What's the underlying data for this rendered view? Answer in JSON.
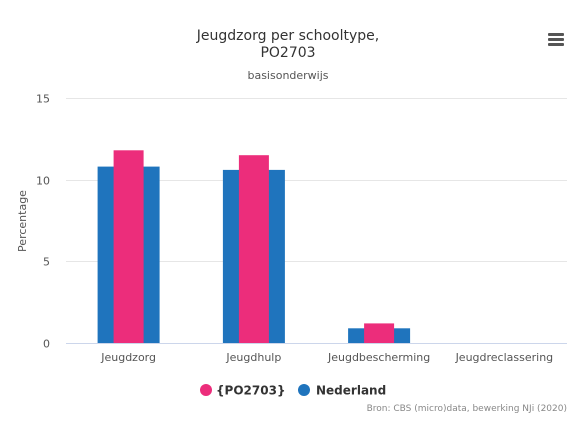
{
  "chart_data": {
    "type": "bar",
    "title_line1": "Jeugdzorg per schooltype,",
    "title_line2": "PO2703",
    "subtitle": "basisonderwijs",
    "ylabel": "Percentage",
    "ylim": [
      0,
      15
    ],
    "yticks": [
      0,
      5,
      10,
      15
    ],
    "categories": [
      "Jeugdzorg",
      "Jeugdhulp",
      "Jeugdbescherming",
      "Jeugdreclassering"
    ],
    "series": [
      {
        "name": "Nederland",
        "color": "#1f74bd",
        "values": [
          10.8,
          10.6,
          0.9,
          0
        ]
      },
      {
        "name": "{PO2703}",
        "color": "#ec2d7b",
        "values": [
          11.8,
          11.5,
          1.2,
          0
        ]
      }
    ],
    "legend": [
      {
        "name": "{PO2703}",
        "color": "#ec2d7b"
      },
      {
        "name": "Nederland",
        "color": "#1f74bd"
      }
    ],
    "legend_placement": "bottom-center",
    "grid": true,
    "credits": "Bron: CBS (micro)data, bewerking NJi (2020)",
    "menu_icon": "hamburger-menu-icon"
  }
}
